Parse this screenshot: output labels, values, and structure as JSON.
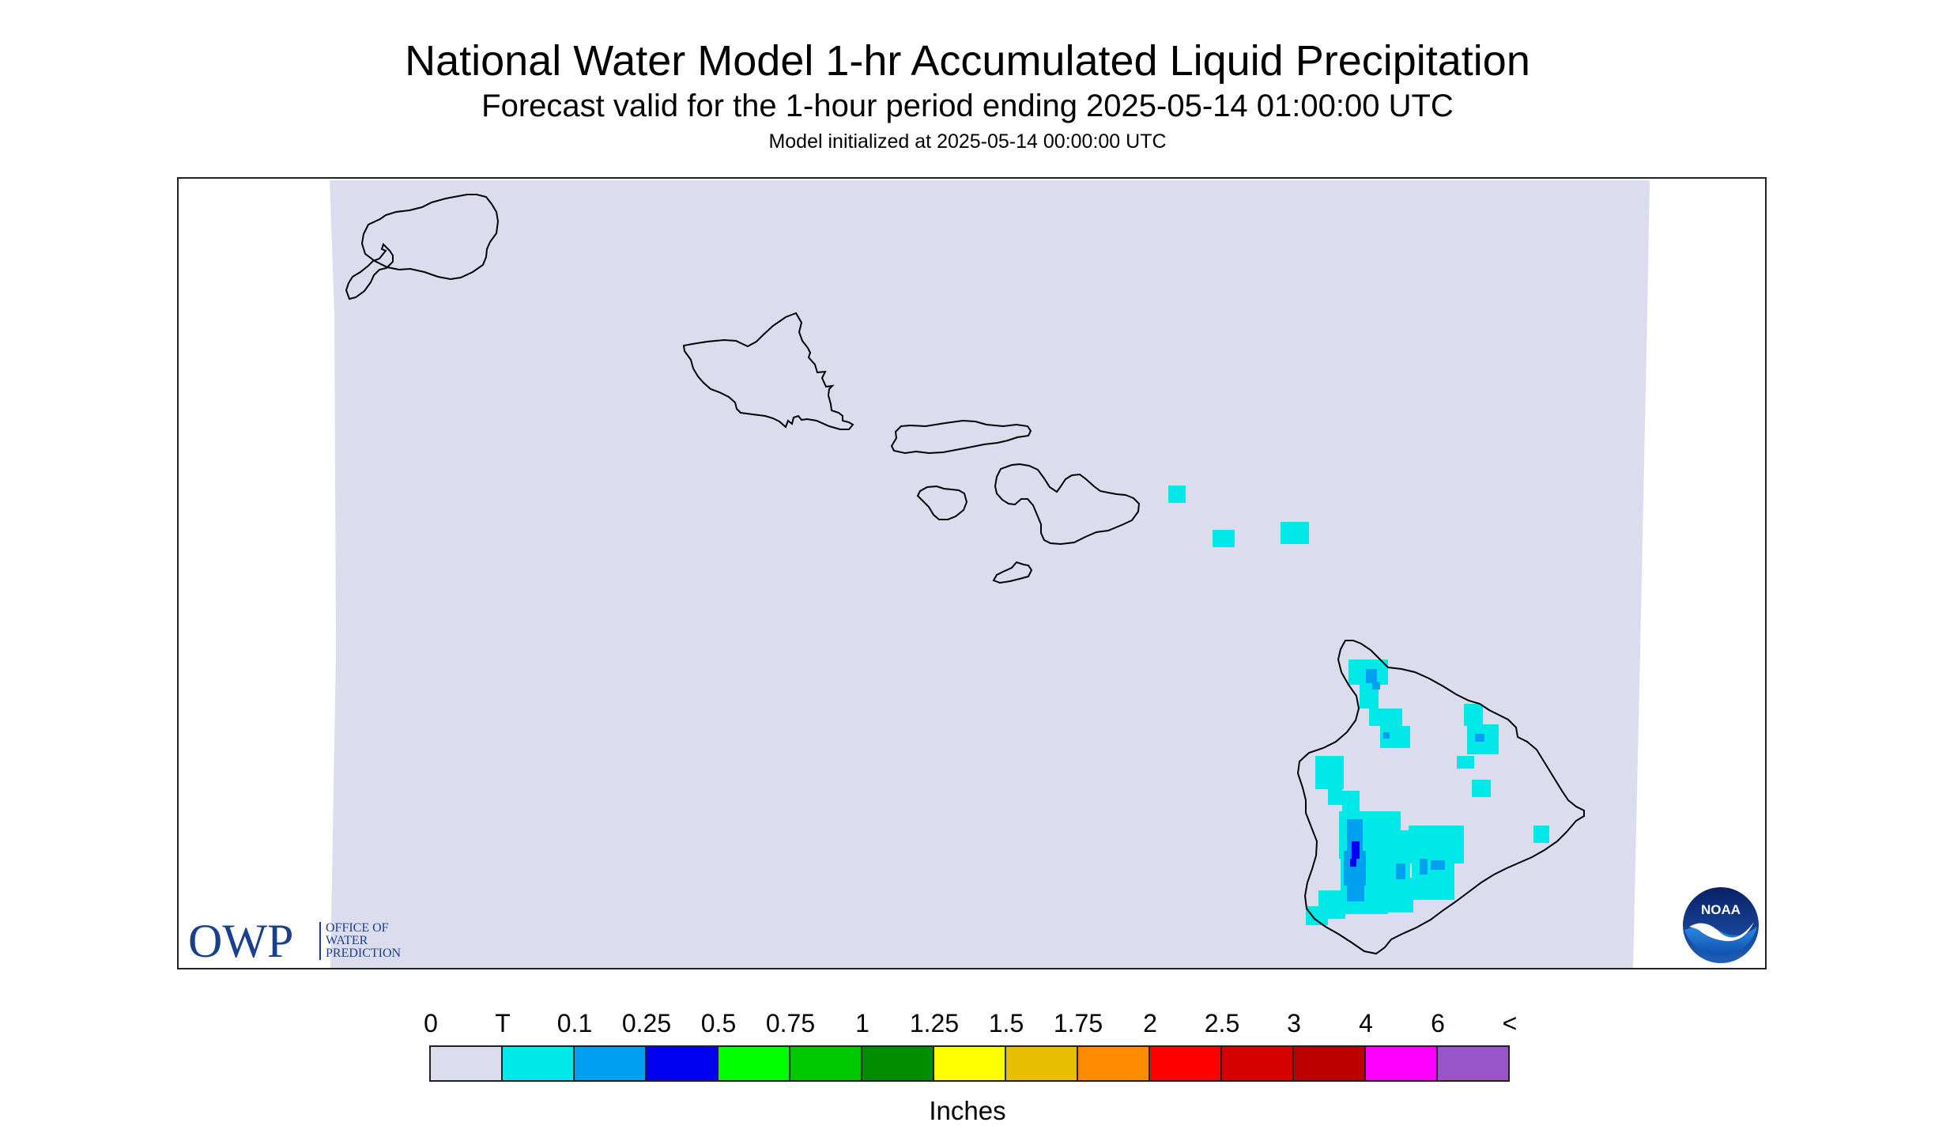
{
  "header": {
    "title": "National Water Model 1-hr Accumulated Liquid Precipitation",
    "subtitle": "Forecast valid for the 1-hour period ending 2025-05-14 01:00:00 UTC",
    "init_line": "Model initialized at 2025-05-14 00:00:00 UTC"
  },
  "map": {
    "background_color": "#dcdcef",
    "coastline_color": "#000000",
    "islands": [
      "Niihau",
      "Kauai",
      "Oahu",
      "Molokai",
      "Lanai",
      "Maui",
      "Kahoolawe",
      "Hawaii"
    ],
    "precip_regions": [
      {
        "island": "Maui",
        "category": "T"
      },
      {
        "island": "Hawaii",
        "category": "T"
      },
      {
        "island": "Hawaii",
        "category": "0.1"
      },
      {
        "island": "Hawaii",
        "category": "0.25"
      }
    ]
  },
  "logos": {
    "owp": {
      "big": "OWP",
      "line1": "OFFICE OF",
      "line2": "WATER",
      "line3": "PREDICTION",
      "icon": "owp-logo"
    },
    "noaa": {
      "text": "NOAA",
      "icon": "noaa-logo"
    }
  },
  "legend": {
    "labels": [
      "0",
      "T",
      "0.1",
      "0.25",
      "0.5",
      "0.75",
      "1",
      "1.25",
      "1.5",
      "1.75",
      "2",
      "2.5",
      "3",
      "4",
      "6",
      "<"
    ],
    "colors": [
      "#dcdcef",
      "#00e8e8",
      "#00a0f0",
      "#0000f0",
      "#00ff00",
      "#00c800",
      "#008c00",
      "#ffff00",
      "#e6bf00",
      "#ff8c00",
      "#ff0000",
      "#d70000",
      "#bb0000",
      "#ff00ff",
      "#9955c9"
    ],
    "units": "Inches"
  }
}
